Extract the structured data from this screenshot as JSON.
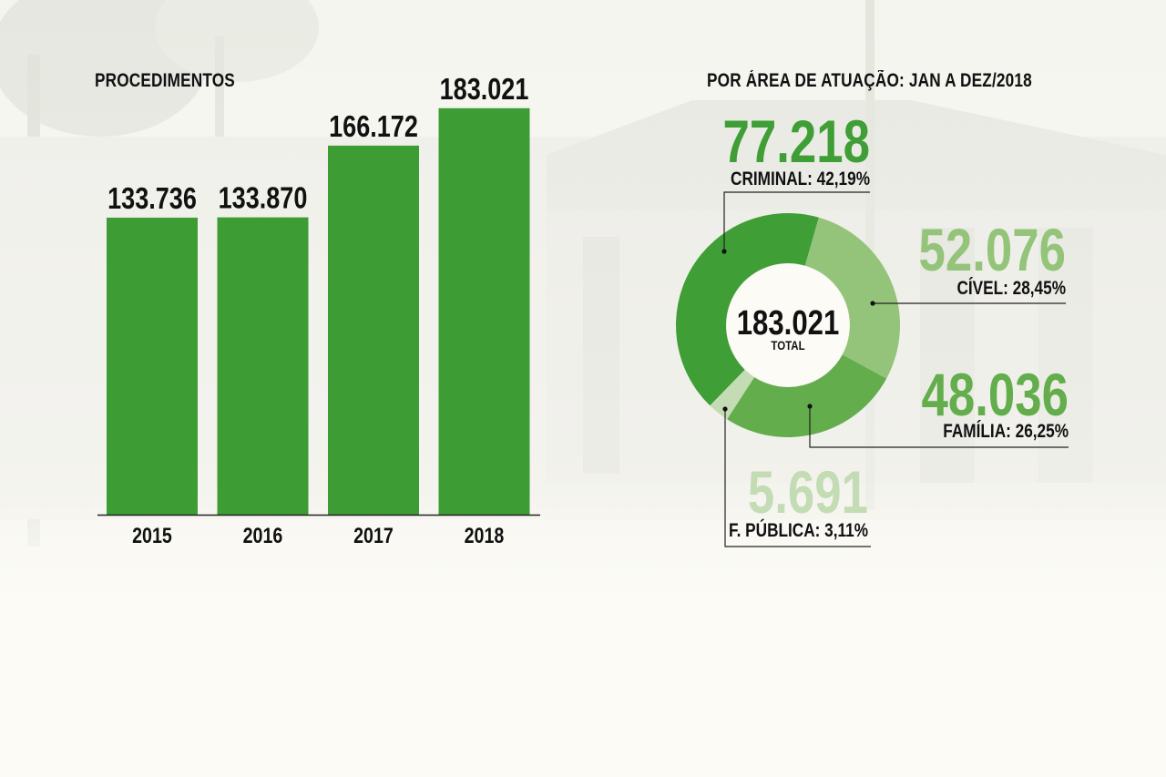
{
  "left_title": "PROCEDIMENTOS",
  "right_title": "POR ÁREA DE ATUAÇÃO: JAN A DEZ/2018",
  "colors": {
    "bar": "#3e9c35",
    "criminal": "#3f9e35",
    "civel": "#94c37a",
    "familia": "#63ad4c",
    "fpublica": "#c3dcb4",
    "text": "#111111"
  },
  "chart_data": [
    {
      "type": "bar",
      "title": "PROCEDIMENTOS",
      "categories": [
        "2015",
        "2016",
        "2017",
        "2018"
      ],
      "values": [
        133736,
        133870,
        166172,
        183021
      ],
      "value_labels": [
        "133.736",
        "133.870",
        "166.172",
        "183.021"
      ],
      "ylim": [
        0,
        200000
      ],
      "grid": false,
      "xlabel": "",
      "ylabel": ""
    },
    {
      "type": "pie",
      "title": "POR ÁREA DE ATUAÇÃO: JAN A DEZ/2018",
      "center_value": "183.021",
      "center_label": "TOTAL",
      "slices": [
        {
          "key": "criminal",
          "label": "CRIMINAL: 42,19%",
          "value": 77218,
          "value_label": "77.218",
          "percent": 42.19
        },
        {
          "key": "civel",
          "label": "CÍVEL: 28,45%",
          "value": 52076,
          "value_label": "52.076",
          "percent": 28.45
        },
        {
          "key": "familia",
          "label": "FAMÍLIA: 26,25%",
          "value": 48036,
          "value_label": "48.036",
          "percent": 26.25
        },
        {
          "key": "fpublica",
          "label": "F. PÚBLICA: 3,11%",
          "value": 5691,
          "value_label": "5.691",
          "percent": 3.11
        }
      ]
    }
  ]
}
